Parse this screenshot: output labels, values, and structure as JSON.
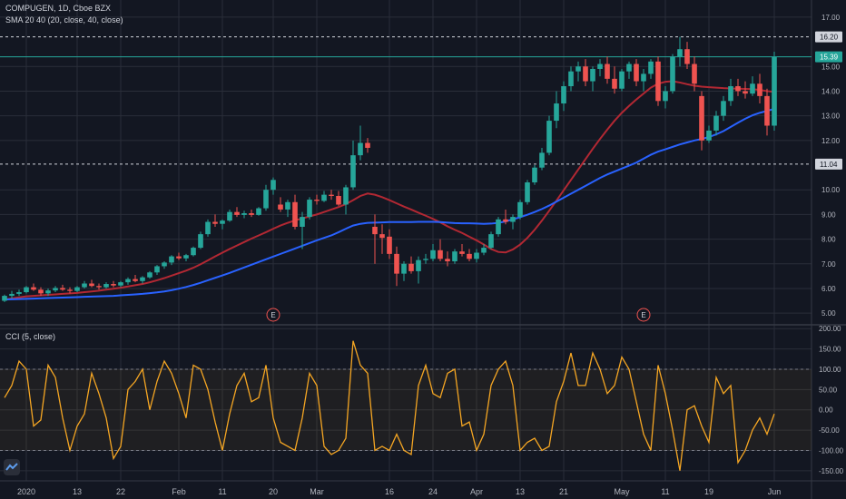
{
  "header": {
    "symbol": "COMPUGEN, 1D, Cboe BZX",
    "indicator1": "SMA 20 40 (20, close, 40, close)",
    "indicator2": "CCI (5, close)"
  },
  "colors": {
    "background": "#131722",
    "grid": "#2a2e39",
    "up": "#26a69a",
    "down": "#ef5350",
    "sma20": "#b22833",
    "sma40": "#2962ff",
    "cci": "#f5a623",
    "text": "#b2b5be"
  },
  "chart_data": [
    {
      "type": "candlestick",
      "y_ticks": [
        "17.00",
        "15.00",
        "14.00",
        "13.00",
        "12.00",
        "10.00",
        "9.00",
        "8.00",
        "7.00",
        "6.00",
        "5.00"
      ],
      "ylim": [
        4.6,
        17.4
      ],
      "x_ticks": [
        {
          "label": "2020",
          "i": 3
        },
        {
          "label": "13",
          "i": 10
        },
        {
          "label": "22",
          "i": 16
        },
        {
          "label": "Feb",
          "i": 24
        },
        {
          "label": "11",
          "i": 30
        },
        {
          "label": "20",
          "i": 37
        },
        {
          "label": "Mar",
          "i": 43
        },
        {
          "label": "16",
          "i": 53
        },
        {
          "label": "24",
          "i": 59
        },
        {
          "label": "Apr",
          "i": 65
        },
        {
          "label": "13",
          "i": 71
        },
        {
          "label": "21",
          "i": 77
        },
        {
          "label": "May",
          "i": 85
        },
        {
          "label": "11",
          "i": 91
        },
        {
          "label": "19",
          "i": 97
        },
        {
          "label": "Jun",
          "i": 106
        }
      ],
      "price_lines": [
        {
          "value": 16.2,
          "label": "16.20",
          "style": "dashed"
        },
        {
          "value": 11.04,
          "label": "11.04",
          "style": "dashed"
        },
        {
          "value": 15.39,
          "label": "15.39",
          "style": "solid-current"
        }
      ],
      "earnings_markers": [
        {
          "label": "E",
          "i": 37
        },
        {
          "label": "E",
          "i": 88
        }
      ],
      "ohlc": [
        [
          5.5,
          5.75,
          5.45,
          5.7
        ],
        [
          5.7,
          5.9,
          5.6,
          5.78
        ],
        [
          5.78,
          5.95,
          5.7,
          5.85
        ],
        [
          5.85,
          6.1,
          5.8,
          6.05
        ],
        [
          6.05,
          6.2,
          5.9,
          5.95
        ],
        [
          5.95,
          6.05,
          5.7,
          5.8
        ],
        [
          5.8,
          6.0,
          5.7,
          5.92
        ],
        [
          5.92,
          6.1,
          5.85,
          6.02
        ],
        [
          6.02,
          6.15,
          5.9,
          5.95
        ],
        [
          5.95,
          6.05,
          5.8,
          5.9
        ],
        [
          5.9,
          6.1,
          5.85,
          6.05
        ],
        [
          6.05,
          6.3,
          6.0,
          6.2
        ],
        [
          6.2,
          6.35,
          6.05,
          6.1
        ],
        [
          6.1,
          6.2,
          5.95,
          6.05
        ],
        [
          6.05,
          6.25,
          6.0,
          6.18
        ],
        [
          6.18,
          6.3,
          6.05,
          6.12
        ],
        [
          6.12,
          6.3,
          6.05,
          6.25
        ],
        [
          6.25,
          6.45,
          6.15,
          6.38
        ],
        [
          6.38,
          6.55,
          6.25,
          6.3
        ],
        [
          6.3,
          6.5,
          6.2,
          6.45
        ],
        [
          6.45,
          6.7,
          6.4,
          6.65
        ],
        [
          6.65,
          6.95,
          6.55,
          6.9
        ],
        [
          6.9,
          7.1,
          6.8,
          7.05
        ],
        [
          7.05,
          7.35,
          6.95,
          7.3
        ],
        [
          7.3,
          7.45,
          7.15,
          7.22
        ],
        [
          7.22,
          7.4,
          7.1,
          7.35
        ],
        [
          7.35,
          7.7,
          7.3,
          7.65
        ],
        [
          7.65,
          8.3,
          7.6,
          8.2
        ],
        [
          8.2,
          8.8,
          8.1,
          8.7
        ],
        [
          8.7,
          9.0,
          8.5,
          8.62
        ],
        [
          8.62,
          8.8,
          8.4,
          8.75
        ],
        [
          8.75,
          9.2,
          8.7,
          9.1
        ],
        [
          9.1,
          9.3,
          8.9,
          8.98
        ],
        [
          8.98,
          9.15,
          8.85,
          9.05
        ],
        [
          9.05,
          9.2,
          8.9,
          8.98
        ],
        [
          8.98,
          9.3,
          8.95,
          9.25
        ],
        [
          9.25,
          10.2,
          9.15,
          10.0
        ],
        [
          10.0,
          10.5,
          9.8,
          10.4
        ],
        [
          9.4,
          9.7,
          9.1,
          9.2
        ],
        [
          9.2,
          9.6,
          8.9,
          9.5
        ],
        [
          9.5,
          9.8,
          8.4,
          8.5
        ],
        [
          8.5,
          9.1,
          7.6,
          8.9
        ],
        [
          8.9,
          9.7,
          8.8,
          9.6
        ],
        [
          9.6,
          9.8,
          9.4,
          9.55
        ],
        [
          9.55,
          9.95,
          9.5,
          9.8
        ],
        [
          9.8,
          10.0,
          9.6,
          9.75
        ],
        [
          9.75,
          9.95,
          9.35,
          9.4
        ],
        [
          9.4,
          10.2,
          9.0,
          10.1
        ],
        [
          10.1,
          12.0,
          10.0,
          11.4
        ],
        [
          11.4,
          12.6,
          11.2,
          11.9
        ],
        [
          11.9,
          12.1,
          11.5,
          11.7
        ],
        [
          8.5,
          9.0,
          7.0,
          8.2
        ],
        [
          8.2,
          8.6,
          7.4,
          8.05
        ],
        [
          8.1,
          8.4,
          7.2,
          7.4
        ],
        [
          7.4,
          7.7,
          6.1,
          6.6
        ],
        [
          6.6,
          7.1,
          6.3,
          7.0
        ],
        [
          7.0,
          7.3,
          6.6,
          6.7
        ],
        [
          6.7,
          7.3,
          6.2,
          7.15
        ],
        [
          7.15,
          7.4,
          7.0,
          7.2
        ],
        [
          7.2,
          7.8,
          7.1,
          7.55
        ],
        [
          7.55,
          8.0,
          7.1,
          7.2
        ],
        [
          7.2,
          7.5,
          6.9,
          7.1
        ],
        [
          7.1,
          7.6,
          7.0,
          7.5
        ],
        [
          7.5,
          7.8,
          7.3,
          7.4
        ],
        [
          7.4,
          7.6,
          7.1,
          7.2
        ],
        [
          7.2,
          7.6,
          7.05,
          7.45
        ],
        [
          7.45,
          7.8,
          7.35,
          7.65
        ],
        [
          7.65,
          8.3,
          7.6,
          8.2
        ],
        [
          8.2,
          8.9,
          8.1,
          8.8
        ],
        [
          8.8,
          9.2,
          8.6,
          8.7
        ],
        [
          8.7,
          9.0,
          8.4,
          8.9
        ],
        [
          8.9,
          9.6,
          8.8,
          9.5
        ],
        [
          9.5,
          10.4,
          9.4,
          10.3
        ],
        [
          10.3,
          11.0,
          10.2,
          10.9
        ],
        [
          10.9,
          11.7,
          10.8,
          11.5
        ],
        [
          11.5,
          13.0,
          11.4,
          12.8
        ],
        [
          12.8,
          14.0,
          12.5,
          13.5
        ],
        [
          13.5,
          14.4,
          13.2,
          14.2
        ],
        [
          14.2,
          15.0,
          14.0,
          14.8
        ],
        [
          14.8,
          15.2,
          14.4,
          15.0
        ],
        [
          15.0,
          15.3,
          14.2,
          14.4
        ],
        [
          14.4,
          15.0,
          14.0,
          14.9
        ],
        [
          14.9,
          15.3,
          14.6,
          15.1
        ],
        [
          15.1,
          15.4,
          14.3,
          14.5
        ],
        [
          14.5,
          15.0,
          13.9,
          14.1
        ],
        [
          14.1,
          14.9,
          14.0,
          14.8
        ],
        [
          14.8,
          15.2,
          14.5,
          15.1
        ],
        [
          15.1,
          15.3,
          14.2,
          14.4
        ],
        [
          14.4,
          14.9,
          14.0,
          14.7
        ],
        [
          14.7,
          15.3,
          14.5,
          15.2
        ],
        [
          15.2,
          15.4,
          13.4,
          13.6
        ],
        [
          13.6,
          14.2,
          13.3,
          14.0
        ],
        [
          14.0,
          15.5,
          13.9,
          15.4
        ],
        [
          15.4,
          16.2,
          15.0,
          15.7
        ],
        [
          15.7,
          16.0,
          14.9,
          15.1
        ],
        [
          15.1,
          15.4,
          14.0,
          14.3
        ],
        [
          13.8,
          14.0,
          11.6,
          12.0
        ],
        [
          12.0,
          12.6,
          11.9,
          12.4
        ],
        [
          12.4,
          13.2,
          12.2,
          13.0
        ],
        [
          13.0,
          13.8,
          12.8,
          13.6
        ],
        [
          13.6,
          14.5,
          13.4,
          14.2
        ],
        [
          14.2,
          14.5,
          13.8,
          14.0
        ],
        [
          14.0,
          14.4,
          13.7,
          13.9
        ],
        [
          13.9,
          14.6,
          13.8,
          14.3
        ],
        [
          14.3,
          14.7,
          13.5,
          13.8
        ],
        [
          13.8,
          14.1,
          12.2,
          12.6
        ],
        [
          12.6,
          15.6,
          12.4,
          15.39
        ]
      ],
      "series": [
        {
          "name": "SMA 20",
          "values": [
            5.55,
            5.6,
            5.64,
            5.68,
            5.7,
            5.72,
            5.74,
            5.76,
            5.78,
            5.8,
            5.82,
            5.85,
            5.88,
            5.91,
            5.95,
            5.99,
            6.03,
            6.08,
            6.13,
            6.18,
            6.25,
            6.33,
            6.42,
            6.52,
            6.62,
            6.72,
            6.84,
            6.98,
            7.14,
            7.3,
            7.45,
            7.6,
            7.74,
            7.88,
            8.02,
            8.15,
            8.28,
            8.42,
            8.55,
            8.66,
            8.76,
            8.84,
            8.92,
            9.0,
            9.1,
            9.2,
            9.3,
            9.42,
            9.58,
            9.75,
            9.85,
            9.8,
            9.7,
            9.58,
            9.45,
            9.32,
            9.2,
            9.07,
            8.95,
            8.82,
            8.68,
            8.52,
            8.38,
            8.25,
            8.1,
            7.95,
            7.78,
            7.6,
            7.48,
            7.46,
            7.58,
            7.78,
            8.05,
            8.38,
            8.75,
            9.15,
            9.56,
            9.98,
            10.4,
            10.82,
            11.24,
            11.66,
            12.06,
            12.44,
            12.8,
            13.12,
            13.4,
            13.66,
            13.9,
            14.14,
            14.3,
            14.38,
            14.4,
            14.35,
            14.28,
            14.22,
            14.18,
            14.16,
            14.14,
            14.12,
            14.11,
            14.1,
            14.09,
            14.08,
            14.05,
            14.0,
            13.97
          ]
        },
        {
          "name": "SMA 40",
          "values": [
            5.55,
            5.56,
            5.57,
            5.58,
            5.59,
            5.6,
            5.61,
            5.62,
            5.63,
            5.64,
            5.65,
            5.66,
            5.67,
            5.68,
            5.69,
            5.7,
            5.72,
            5.74,
            5.76,
            5.78,
            5.81,
            5.84,
            5.88,
            5.93,
            5.99,
            6.06,
            6.14,
            6.23,
            6.33,
            6.43,
            6.53,
            6.63,
            6.74,
            6.85,
            6.96,
            7.07,
            7.18,
            7.29,
            7.4,
            7.51,
            7.62,
            7.73,
            7.84,
            7.95,
            8.05,
            8.15,
            8.28,
            8.42,
            8.55,
            8.62,
            8.66,
            8.67,
            8.68,
            8.69,
            8.69,
            8.69,
            8.69,
            8.7,
            8.7,
            8.7,
            8.69,
            8.67,
            8.65,
            8.64,
            8.64,
            8.63,
            8.62,
            8.63,
            8.66,
            8.72,
            8.8,
            8.89,
            8.99,
            9.1,
            9.22,
            9.36,
            9.52,
            9.68,
            9.84,
            10.0,
            10.16,
            10.32,
            10.48,
            10.62,
            10.74,
            10.86,
            10.98,
            11.1,
            11.26,
            11.42,
            11.55,
            11.64,
            11.74,
            11.84,
            11.92,
            12.0,
            12.06,
            12.14,
            12.25,
            12.38,
            12.55,
            12.72,
            12.88,
            13.02,
            13.12,
            13.2,
            13.28
          ]
        }
      ]
    },
    {
      "type": "line",
      "name": "CCI (5, close)",
      "y_ticks": [
        "200.00",
        "150.00",
        "100.00",
        "50.00",
        "0.00",
        "-50.00",
        "-100.00",
        "-150.00"
      ],
      "ylim": [
        -175,
        205
      ],
      "bands": [
        100,
        -100
      ],
      "values": [
        30,
        60,
        120,
        100,
        -40,
        -25,
        110,
        80,
        -20,
        -100,
        -40,
        -10,
        90,
        40,
        -20,
        -120,
        -90,
        50,
        70,
        100,
        0,
        70,
        120,
        90,
        40,
        -20,
        110,
        100,
        50,
        -30,
        -100,
        -10,
        60,
        90,
        20,
        30,
        110,
        -20,
        -80,
        -90,
        -100,
        -20,
        90,
        60,
        -90,
        -110,
        -100,
        -70,
        170,
        110,
        90,
        -100,
        -90,
        -100,
        -60,
        -100,
        -110,
        60,
        110,
        40,
        30,
        90,
        100,
        -40,
        -30,
        -100,
        -60,
        60,
        100,
        120,
        60,
        -100,
        -80,
        -70,
        -100,
        -90,
        20,
        70,
        140,
        60,
        60,
        140,
        100,
        40,
        60,
        130,
        100,
        20,
        -60,
        -100,
        110,
        40,
        -50,
        -150,
        0,
        10,
        -40,
        -80,
        80,
        40,
        60,
        -130,
        -100,
        -50,
        -20,
        -60,
        -10
      ]
    }
  ]
}
